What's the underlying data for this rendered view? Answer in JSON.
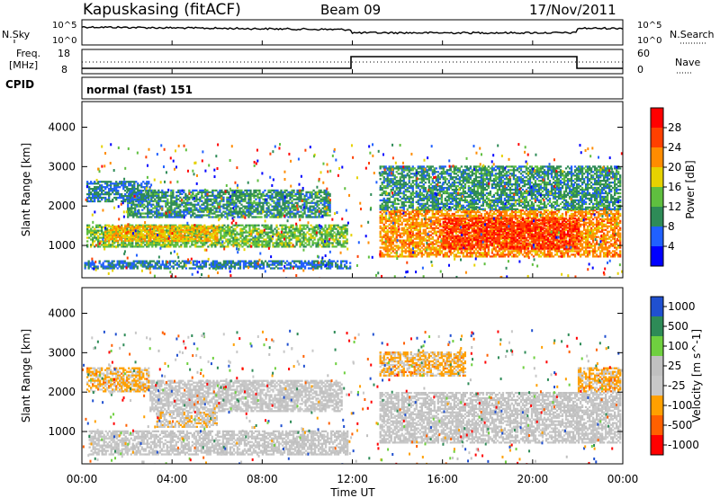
{
  "header": {
    "station": "Kapuskasing (fitACF)",
    "beam": "Beam 09",
    "date": "17/Nov/2011"
  },
  "top_panel": {
    "left_label": "N.Sky",
    "right_label": "N.Search",
    "left_ticks": [
      "10^5",
      "10^0"
    ],
    "right_ticks": [
      "10^5",
      "10^0"
    ]
  },
  "freq_panel": {
    "left_label_1": "Freq.",
    "left_label_2": "[MHz]",
    "right_label": "Nave",
    "left_ticks": [
      "18",
      "8"
    ],
    "right_ticks": [
      "60",
      "0"
    ]
  },
  "cpid": {
    "label": "CPID",
    "mode": "normal (fast) 151"
  },
  "x_axis": {
    "label": "Time UT",
    "ticks": [
      "00:00",
      "04:00",
      "08:00",
      "12:00",
      "16:00",
      "20:00",
      "00:00"
    ]
  },
  "colors": {
    "power_scale": [
      "#0000ff",
      "#2060ff",
      "#2e8b57",
      "#5fbf3f",
      "#e6d200",
      "#ff8c00",
      "#ff4000",
      "#ff0000"
    ],
    "velocity_scale": [
      "#2050d0",
      "#2e8b57",
      "#6fd03f",
      "#c0c0c0",
      "#c8c8c8",
      "#ffa000",
      "#ff6000",
      "#ff0000"
    ]
  },
  "chart_data": [
    {
      "type": "heatmap",
      "title": "",
      "xlabel": "Time UT",
      "ylabel": "Slant Range [km]",
      "xlim": [
        0,
        24
      ],
      "ylim": [
        180,
        4650
      ],
      "yticks": [
        1000,
        2000,
        3000,
        4000
      ],
      "colorbar_label": "Power [dB]",
      "colorbar_ticks": [
        "28",
        "24",
        "20",
        "16",
        "12",
        "8",
        "4"
      ],
      "color_range": [
        0,
        32
      ],
      "regions": [
        {
          "t0": 0.1,
          "t1": 11.9,
          "r0": 400,
          "r1": 600,
          "value": 8
        },
        {
          "t0": 0.2,
          "t1": 11.8,
          "r0": 950,
          "r1": 1500,
          "value": 14
        },
        {
          "t0": 1.0,
          "t1": 6.0,
          "r0": 1100,
          "r1": 1500,
          "value": 20
        },
        {
          "t0": 2.0,
          "t1": 11.0,
          "r0": 1700,
          "r1": 2400,
          "value": 10
        },
        {
          "t0": 0.2,
          "t1": 3.0,
          "r0": 2100,
          "r1": 2600,
          "value": 8
        },
        {
          "t0": 13.2,
          "t1": 23.9,
          "r0": 700,
          "r1": 1900,
          "value": 22
        },
        {
          "t0": 13.2,
          "t1": 23.9,
          "r0": 1900,
          "r1": 3000,
          "value": 10
        },
        {
          "t0": 16.0,
          "t1": 22.0,
          "r0": 900,
          "r1": 1700,
          "value": 27
        }
      ]
    },
    {
      "type": "heatmap",
      "title": "",
      "xlabel": "Time UT",
      "ylabel": "Slant Range [km]",
      "xlim": [
        0,
        24
      ],
      "ylim": [
        180,
        4650
      ],
      "yticks": [
        1000,
        2000,
        3000,
        4000
      ],
      "colorbar_label": "Velocity [m s^-1]",
      "colorbar_ticks": [
        "1000",
        "500",
        "100",
        "25",
        "-25",
        "-100",
        "-500",
        "-1000"
      ],
      "color_range": [
        -1000,
        1000
      ],
      "regions": [
        {
          "t0": 0.3,
          "t1": 11.8,
          "r0": 400,
          "r1": 1000,
          "value": 0
        },
        {
          "t0": 3.0,
          "t1": 11.5,
          "r0": 1500,
          "r1": 2300,
          "value": 0
        },
        {
          "t0": 0.2,
          "t1": 3.0,
          "r0": 2000,
          "r1": 2600,
          "value": -300
        },
        {
          "t0": 3.3,
          "t1": 6.0,
          "r0": 1100,
          "r1": 1500,
          "value": -150
        },
        {
          "t0": 13.2,
          "t1": 23.9,
          "r0": 700,
          "r1": 2000,
          "value": 0
        },
        {
          "t0": 13.2,
          "t1": 17.0,
          "r0": 2400,
          "r1": 3000,
          "value": -300
        },
        {
          "t0": 22.0,
          "t1": 23.9,
          "r0": 2000,
          "r1": 2600,
          "value": -300
        }
      ]
    }
  ]
}
